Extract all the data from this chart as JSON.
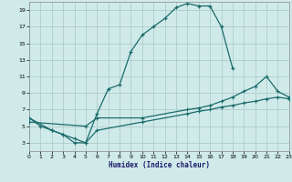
{
  "bg_color": "#d0eaea",
  "grid_color": "#b0cccc",
  "line_color": "#1a6b6b",
  "xlabel": "Humidex (Indice chaleur)",
  "xlim": [
    0,
    23
  ],
  "ylim": [
    2,
    20
  ],
  "xticks": [
    0,
    1,
    2,
    3,
    4,
    5,
    6,
    7,
    8,
    9,
    10,
    11,
    12,
    13,
    14,
    15,
    16,
    17,
    18,
    19,
    20,
    21,
    22,
    23
  ],
  "yticks": [
    3,
    5,
    7,
    9,
    11,
    13,
    15,
    17,
    19
  ],
  "curve1_x": [
    0,
    1,
    2,
    3,
    4,
    5,
    6,
    7,
    8,
    9,
    10,
    11,
    12,
    13,
    14,
    15,
    16,
    17,
    18
  ],
  "curve1_y": [
    6,
    5,
    4.5,
    4,
    3,
    3,
    6.5,
    9.5,
    10,
    14,
    16,
    17,
    18,
    19.3,
    19.8,
    19.5,
    19.5,
    17,
    12
  ],
  "curve2_x": [
    0,
    2,
    3,
    4,
    5,
    6,
    10,
    14,
    15,
    16,
    17,
    18,
    19,
    20,
    21,
    22,
    23
  ],
  "curve2_y": [
    6,
    4.5,
    4,
    3.5,
    3,
    4.5,
    5.5,
    6.5,
    6.8,
    7.0,
    7.3,
    7.5,
    7.8,
    8.0,
    8.3,
    8.5,
    8.3
  ],
  "curve3_x": [
    0,
    5,
    6,
    10,
    14,
    15,
    16,
    17,
    18,
    19,
    20,
    21,
    22,
    23
  ],
  "curve3_y": [
    5.5,
    5,
    6,
    6,
    7,
    7.2,
    7.5,
    8.0,
    8.5,
    9.2,
    9.8,
    11,
    9.2,
    8.5
  ]
}
